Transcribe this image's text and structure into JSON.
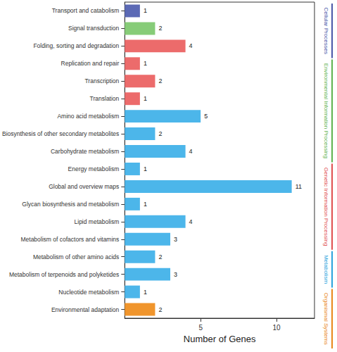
{
  "chart_data": {
    "type": "bar",
    "orientation": "horizontal",
    "x_label": "Number of Genes",
    "categories": [
      "Transport and catabolism",
      "Signal transduction",
      "Folding, sorting and degradation",
      "Replication and repair",
      "Transcription",
      "Translation",
      "Amino acid metabolism",
      "Biosynthesis of other secondary metabolites",
      "Carbohydrate metabolism",
      "Energy metabolism",
      "Global and overview maps",
      "Glycan biosynthesis and metabolism",
      "Lipid metabolism",
      "Metabolism of cofactors and vitamins",
      "Metabolism of other amino acids",
      "Metabolism of terpenoids and polyketides",
      "Nucleotide metabolism",
      "Environmental adaptation"
    ],
    "values": [
      1,
      2,
      4,
      1,
      2,
      1,
      5,
      2,
      4,
      1,
      11,
      1,
      4,
      3,
      2,
      3,
      1,
      2
    ],
    "colors": [
      "#5b69b5",
      "#87cc78",
      "#ec6b6b",
      "#ec6b6b",
      "#ec6b6b",
      "#ec6b6b",
      "#4cb6ea",
      "#4cb6ea",
      "#4cb6ea",
      "#4cb6ea",
      "#4cb6ea",
      "#4cb6ea",
      "#4cb6ea",
      "#4cb6ea",
      "#4cb6ea",
      "#4cb6ea",
      "#4cb6ea",
      "#f0952c"
    ],
    "groups": [
      {
        "name": "Cellular Processes",
        "color": "#4a58a8",
        "categories": [
          "Transport and catabolism"
        ]
      },
      {
        "name": "Environmental Information Processing",
        "color": "#5fb34f",
        "categories": [
          "Signal transduction"
        ]
      },
      {
        "name": "Genetic Information Processing",
        "color": "#e04f4f",
        "categories": [
          "Folding, sorting and degradation",
          "Replication and repair",
          "Transcription",
          "Translation"
        ]
      },
      {
        "name": "Metabolism",
        "color": "#2aa3dc",
        "categories": [
          "Amino acid metabolism",
          "Biosynthesis of other secondary metabolites",
          "Carbohydrate metabolism",
          "Energy metabolism",
          "Global and overview maps",
          "Glycan biosynthesis and metabolism",
          "Lipid metabolism",
          "Metabolism of cofactors and vitamins",
          "Metabolism of other amino acids",
          "Metabolism of terpenoids and polyketides",
          "Nucleotide metabolism"
        ]
      },
      {
        "name": "Organismal Systems",
        "color": "#e8871a",
        "categories": [
          "Environmental adaptation"
        ]
      }
    ],
    "xlim": [
      0,
      12.5
    ],
    "xticks": [
      5,
      10
    ],
    "grid": false,
    "data_labels": true
  }
}
